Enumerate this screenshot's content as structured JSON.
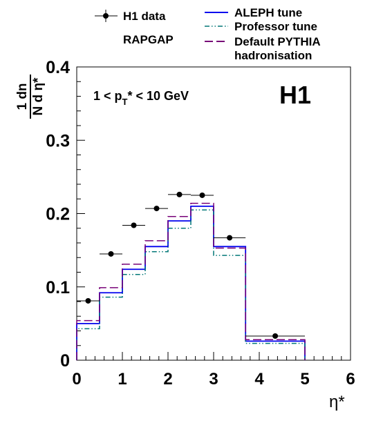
{
  "chart_data": {
    "type": "line",
    "title": "",
    "experiment_label": "H1",
    "selection_label": "1 < p",
    "selection_sub": "T",
    "selection_rest": "* < 10 GeV",
    "xlabel": "η*",
    "ylabel_numerator": "1  dn",
    "ylabel_denominator": "N d η*",
    "xlim": [
      0,
      6
    ],
    "ylim": [
      0,
      0.4
    ],
    "xticks": [
      "0",
      "1",
      "2",
      "3",
      "4",
      "5",
      "6"
    ],
    "yticks": [
      "0",
      "0.1",
      "0.2",
      "0.3",
      "0.4"
    ],
    "grid": false,
    "legend_placement": "top",
    "legend": {
      "data_label": "H1 data",
      "generator_label": "RAPGAP",
      "aleph_label": "ALEPH tune",
      "professor_label": "Professor tune",
      "default_label_1": "Default PYTHIA",
      "default_label_2": "hadronisation"
    },
    "bin_edges": [
      0,
      0.5,
      1.0,
      1.5,
      2.0,
      2.5,
      3.0,
      3.7,
      5.0
    ],
    "data": {
      "name": "H1 data",
      "x": [
        0.25,
        0.75,
        1.25,
        1.75,
        2.25,
        2.75,
        3.35,
        4.35
      ],
      "xerr": [
        0.25,
        0.25,
        0.25,
        0.25,
        0.25,
        0.25,
        0.35,
        0.65
      ],
      "y": [
        0.081,
        0.145,
        0.184,
        0.207,
        0.226,
        0.225,
        0.167,
        0.033
      ]
    },
    "series": [
      {
        "name": "ALEPH tune",
        "color": "#0000ee",
        "style": "solid",
        "values": [
          0.05,
          0.092,
          0.124,
          0.155,
          0.19,
          0.21,
          0.155,
          0.026
        ]
      },
      {
        "name": "Professor tune",
        "color": "#007777",
        "style": "dashdot",
        "values": [
          0.043,
          0.086,
          0.117,
          0.148,
          0.18,
          0.205,
          0.143,
          0.023
        ]
      },
      {
        "name": "Default PYTHIA hadronisation",
        "color": "#770077",
        "style": "dash",
        "values": [
          0.054,
          0.099,
          0.131,
          0.163,
          0.196,
          0.214,
          0.153,
          0.028
        ]
      }
    ]
  }
}
